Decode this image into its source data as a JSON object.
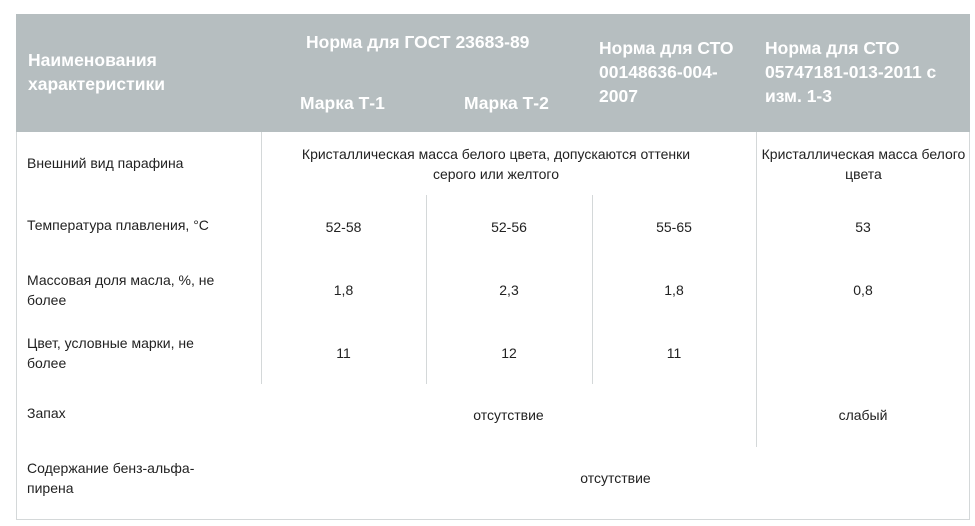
{
  "header": {
    "col_name": "Наименования характеристики",
    "gost": "Норма для ГОСТ 23683-89",
    "mark_t1": "Марка Т-1",
    "mark_t2": "Марка Т-2",
    "sto1": "Норма для СТО 00148636-004-2007",
    "sto2": "Норма для СТО 05747181-013-2011 с изм. 1-3"
  },
  "rows": [
    {
      "name": "Внешний вид парафина",
      "merged_gost_sto1": "Кристаллическая масса белого цвета, допускаются оттенки серого или желтого",
      "sto2": "Кристаллическая масса белого цвета"
    },
    {
      "name": "Температура плавления, °С",
      "t1": "52-58",
      "t2": "52-56",
      "sto1": "55-65",
      "sto2": "53"
    },
    {
      "name": "Массовая доля масла, %, не более",
      "t1": "1,8",
      "t2": "2,3",
      "sto1": "1,8",
      "sto2": "0,8"
    },
    {
      "name": "Цвет, условные марки, не более",
      "t1": "11",
      "t2": "12",
      "sto1": "11",
      "sto2": ""
    },
    {
      "name": "Запах",
      "merged_gost_sto1": "отсутствие",
      "sto2": "слабый"
    },
    {
      "name": "Содержание бенз-альфа-пирена",
      "merged_all": "отсутствие"
    }
  ],
  "colors": {
    "header_bg": "#b6bec0",
    "header_text": "#ffffff",
    "grid_line": "#d4d8d9",
    "body_text": "#222222"
  }
}
